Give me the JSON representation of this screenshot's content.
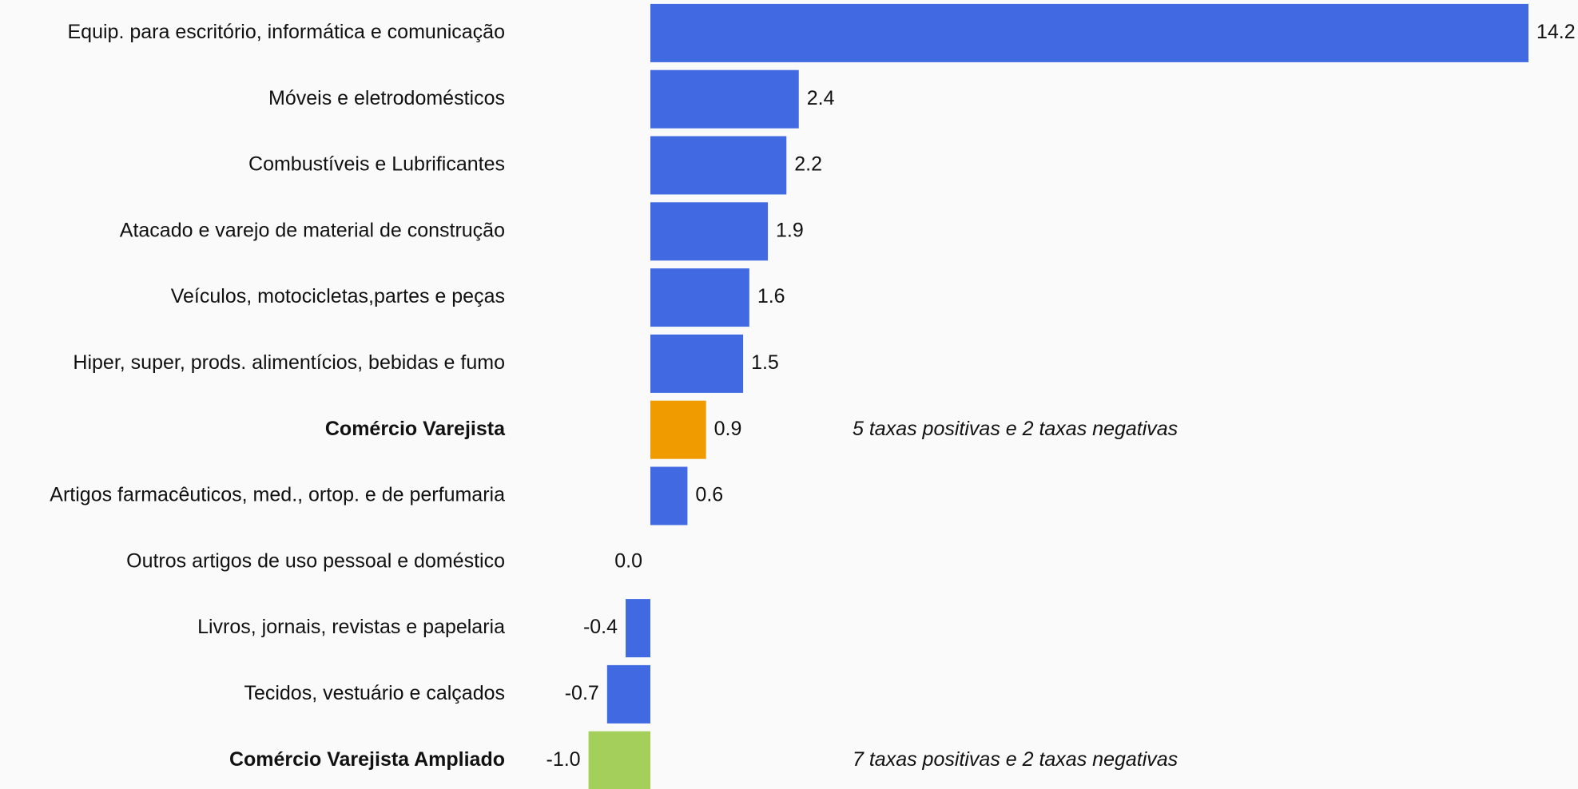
{
  "chart_data": {
    "type": "barh",
    "categories": [
      "Equip. para escritório, informática e comunicação",
      "Móveis e eletrodomésticos",
      "Combustíveis e Lubrificantes",
      "Atacado e varejo de material de construção",
      "Veículos, motocicletas,partes e peças",
      "Hiper, super, prods.  alimentícios, bebidas e fumo",
      "Comércio Varejista",
      "Artigos farmacêuticos, med., ortop. e de perfumaria",
      "Outros artigos de uso pessoal e doméstico",
      "Livros, jornais, revistas e papelaria",
      "Tecidos, vestuário e calçados",
      "Comércio Varejista Ampliado"
    ],
    "values": [
      14.2,
      2.4,
      2.2,
      1.9,
      1.6,
      1.5,
      0.9,
      0.6,
      0.0,
      -0.4,
      -0.7,
      -1.0
    ],
    "value_labels": [
      "14.2",
      "2.4",
      "2.2",
      "1.9",
      "1.6",
      "1.5",
      "0.9",
      "0.6",
      "0.0",
      "-0.4",
      "-0.7",
      "-1.0"
    ],
    "color": "#4169e1",
    "colors": [
      "#4169e1",
      "#4169e1",
      "#4169e1",
      "#4169e1",
      "#4169e1",
      "#4169e1",
      "#f09c00",
      "#4169e1",
      "#4169e1",
      "#4169e1",
      "#4169e1",
      "#a3cf5a"
    ],
    "xlim": [
      -1.0,
      14.2
    ],
    "annotations": [
      {
        "category": 6,
        "text": "5 taxas positivas e 2 taxas negativas"
      },
      {
        "category": 11,
        "text": "7 taxas positivas e 2 taxas negativas"
      }
    ]
  }
}
